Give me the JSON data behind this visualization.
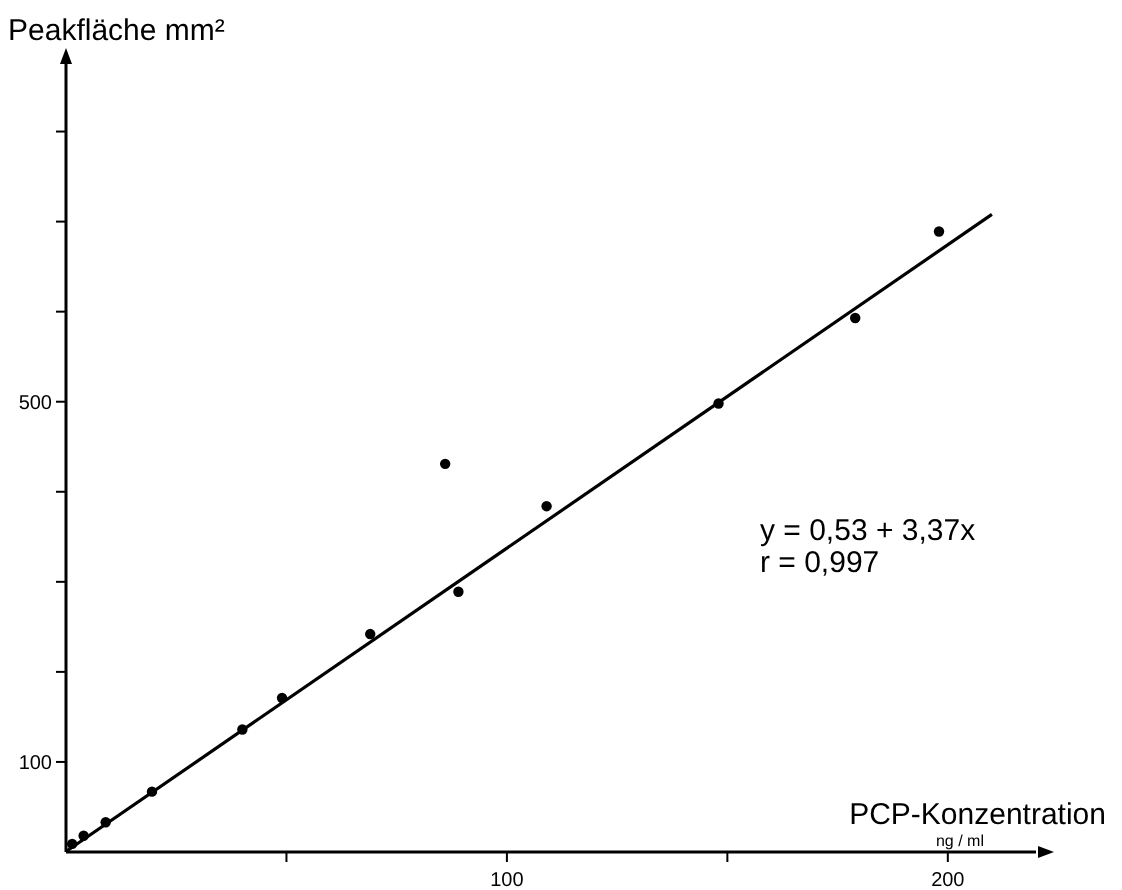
{
  "chart_data": {
    "type": "scatter",
    "ylabel": "Peakfläche mm²",
    "xlabel": "PCP-Konzentration\nng / ml",
    "annotations": [
      "y = 0,53 + 3,37x",
      "r = 0,997"
    ],
    "xlim": [
      0,
      220
    ],
    "ylim": [
      0,
      875
    ],
    "xticks": [
      {
        "value": 50,
        "label": null
      },
      100,
      {
        "value": 150,
        "label": null
      },
      200
    ],
    "yticks": [
      100,
      {
        "value": 200,
        "label": null
      },
      {
        "value": 300,
        "label": null
      },
      {
        "value": 400,
        "label": null
      },
      500,
      {
        "value": 600,
        "label": null
      },
      {
        "value": 700,
        "label": null
      },
      {
        "value": 800,
        "label": null
      }
    ],
    "series": [
      {
        "color": "#000000",
        "marker": "circle",
        "x": [
          1.4,
          4,
          9,
          19.5,
          40,
          49,
          69,
          86,
          89,
          109,
          148,
          179,
          198
        ],
        "values": [
          9,
          18,
          33,
          67,
          136,
          171,
          242,
          431,
          289,
          384,
          498,
          593,
          689
        ]
      },
      {
        "type": "line",
        "color": "#000000",
        "line_style": "solid",
        "x": [
          0,
          210
        ],
        "values": [
          0.5,
          708
        ]
      }
    ]
  }
}
